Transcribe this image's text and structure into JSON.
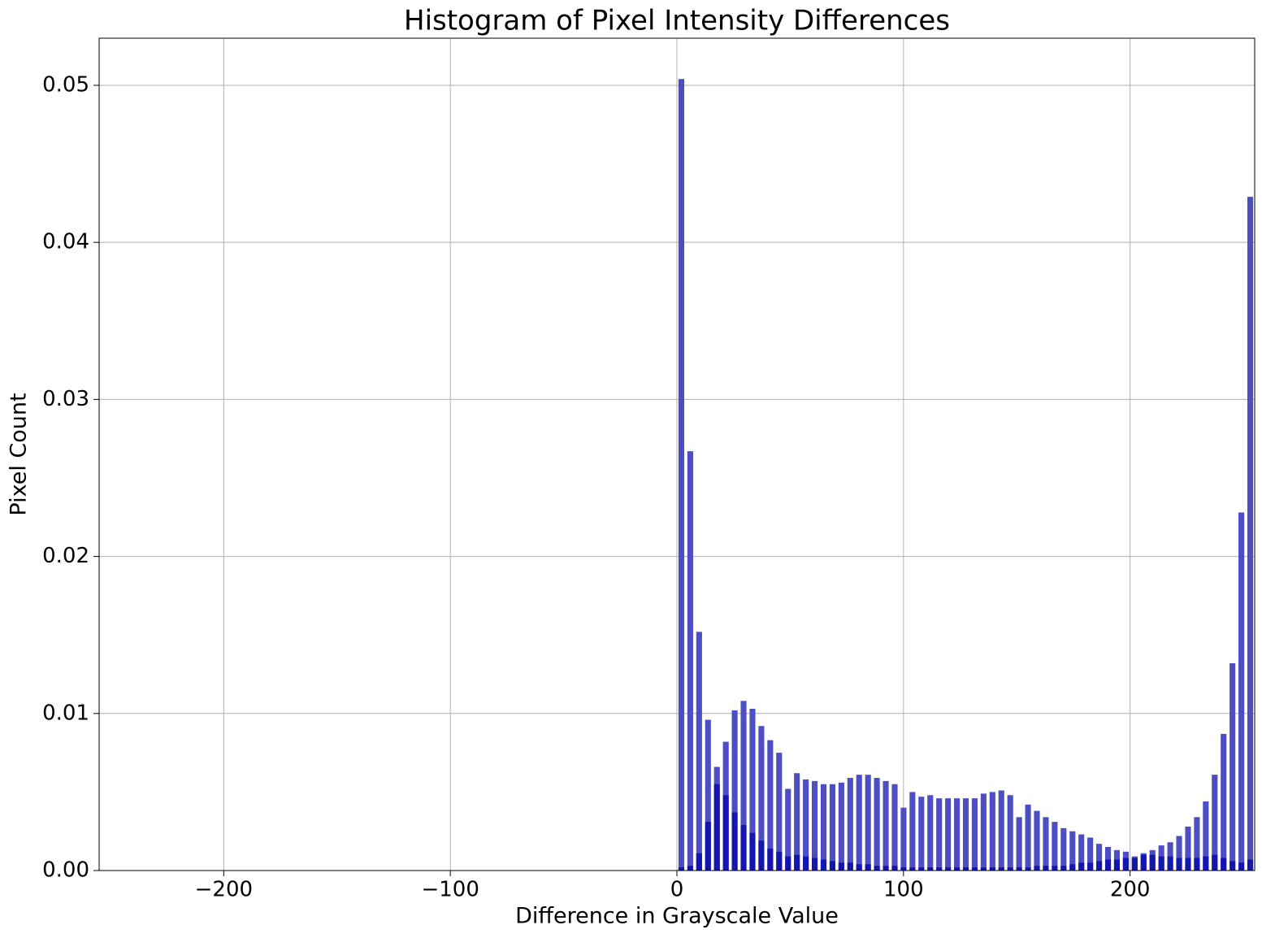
{
  "chart_data": {
    "type": "histogram",
    "title": "Histogram of Pixel Intensity Differences",
    "x_label": "Difference in Grayscale Value",
    "y_label": "Pixel Count",
    "bins": [
      0,
      3.92,
      7.85,
      11.77,
      15.69,
      19.62,
      23.54,
      27.46,
      31.38,
      35.31,
      39.23,
      43.15,
      47.08,
      51,
      54.92,
      58.85,
      62.77,
      66.69,
      70.62,
      74.54,
      78.46,
      82.38,
      86.31,
      90.23,
      94.15,
      98.08,
      102,
      105.92,
      109.85,
      113.77,
      117.69,
      121.62,
      125.54,
      129.46,
      133.38,
      137.31,
      141.23,
      145.15,
      149.08,
      153,
      156.92,
      160.85,
      164.77,
      168.69,
      172.62,
      176.54,
      180.46,
      184.38,
      188.31,
      192.23,
      196.15,
      200.08,
      204,
      207.92,
      211.85,
      215.77,
      219.69,
      223.62,
      227.54,
      231.46,
      235.38,
      239.31,
      243.23,
      247.15,
      251.08,
      255
    ],
    "series": [
      {
        "color": "#4d4dc4",
        "values": [
          0.0504,
          0.0267,
          0.0152,
          0.0096,
          0.0066,
          0.0082,
          0.0102,
          0.0108,
          0.0103,
          0.0092,
          0.0083,
          0.0075,
          0.0052,
          0.0062,
          0.0058,
          0.0057,
          0.0055,
          0.0055,
          0.0056,
          0.0059,
          0.0061,
          0.0061,
          0.0059,
          0.0057,
          0.0055,
          0.004,
          0.005,
          0.0047,
          0.0048,
          0.0046,
          0.0046,
          0.0046,
          0.0046,
          0.0046,
          0.0049,
          0.005,
          0.0051,
          0.0048,
          0.0034,
          0.0042,
          0.0038,
          0.0034,
          0.0031,
          0.0027,
          0.0025,
          0.0023,
          0.0021,
          0.0017,
          0.0015,
          0.0013,
          0.0012,
          0.0009,
          0.0011,
          0.0013,
          0.0016,
          0.0018,
          0.0022,
          0.0028,
          0.0034,
          0.0044,
          0.0061,
          0.0087,
          0.0132,
          0.0228,
          0.0429
        ]
      },
      {
        "color": "#1515b0",
        "values": [
          0.0002,
          0.0003,
          0.0011,
          0.0031,
          0.0055,
          0.0048,
          0.0037,
          0.0029,
          0.0024,
          0.0019,
          0.0014,
          0.0012,
          0.0009,
          0.001,
          0.0009,
          0.0008,
          0.0007,
          0.0006,
          0.0005,
          0.0005,
          0.0004,
          0.0004,
          0.0003,
          0.0003,
          0.0003,
          0.0002,
          0.0002,
          0.0002,
          0.0002,
          0.0002,
          0.0002,
          0.0002,
          0.0002,
          0.0002,
          0.0002,
          0.0002,
          0.0002,
          0.0002,
          0.0002,
          0.0002,
          0.0003,
          0.0003,
          0.0003,
          0.0003,
          0.0004,
          0.0005,
          0.0005,
          0.0006,
          0.0007,
          0.0007,
          0.0008,
          0.0008,
          0.001,
          0.001,
          0.0009,
          0.0009,
          0.0008,
          0.0008,
          0.0008,
          0.0009,
          0.001,
          0.0008,
          0.0006,
          0.0005,
          0.0007
        ]
      }
    ],
    "xlim": [
      -255,
      255
    ],
    "ylim": [
      0,
      0.053
    ],
    "xticks": [
      {
        "value": -200,
        "label": "−200"
      },
      {
        "value": -100,
        "label": "−100"
      },
      0,
      100,
      200
    ],
    "yticks": [
      {
        "value": 0,
        "label": "0.00"
      },
      0.01,
      0.02,
      0.03,
      0.04,
      0.05
    ],
    "grid": true
  }
}
